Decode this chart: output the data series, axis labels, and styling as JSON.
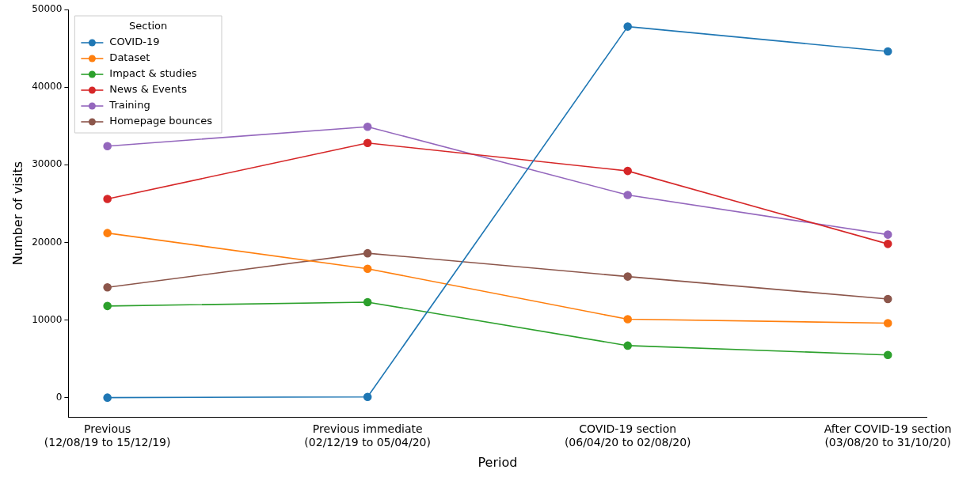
{
  "chart_data": {
    "type": "line",
    "xlabel": "Period",
    "ylabel": "Number of visits",
    "legend_title": "Section",
    "legend": "top left",
    "marker": "circle",
    "line_style": "solid",
    "grid": false,
    "categories": [
      "Previous\n(12/08/19 to 15/12/19)",
      "Previous immediate\n(02/12/19 to 05/04/20)",
      "COVID-19 section\n(06/04/20 to 02/08/20)",
      "After COVID-19 section\n(03/08/20 to 31/10/20)"
    ],
    "ylim": [
      -2500,
      50000
    ],
    "yticks": [
      0,
      10000,
      20000,
      30000,
      40000,
      50000
    ],
    "series": [
      {
        "name": "COVID-19",
        "color": "#1f77b4",
        "values": [
          0,
          100,
          47800,
          44600
        ]
      },
      {
        "name": "Dataset",
        "color": "#ff7f0e",
        "values": [
          21200,
          16600,
          10100,
          9600
        ]
      },
      {
        "name": "Impact & studies",
        "color": "#2ca02c",
        "values": [
          11800,
          12300,
          6700,
          5500
        ]
      },
      {
        "name": "News & Events",
        "color": "#d62728",
        "values": [
          25600,
          32800,
          29200,
          19800
        ]
      },
      {
        "name": "Training",
        "color": "#9467bd",
        "values": [
          32400,
          34900,
          26100,
          21000
        ]
      },
      {
        "name": "Homepage bounces",
        "color": "#8c564b",
        "values": [
          14200,
          18600,
          15600,
          12700
        ]
      }
    ]
  }
}
